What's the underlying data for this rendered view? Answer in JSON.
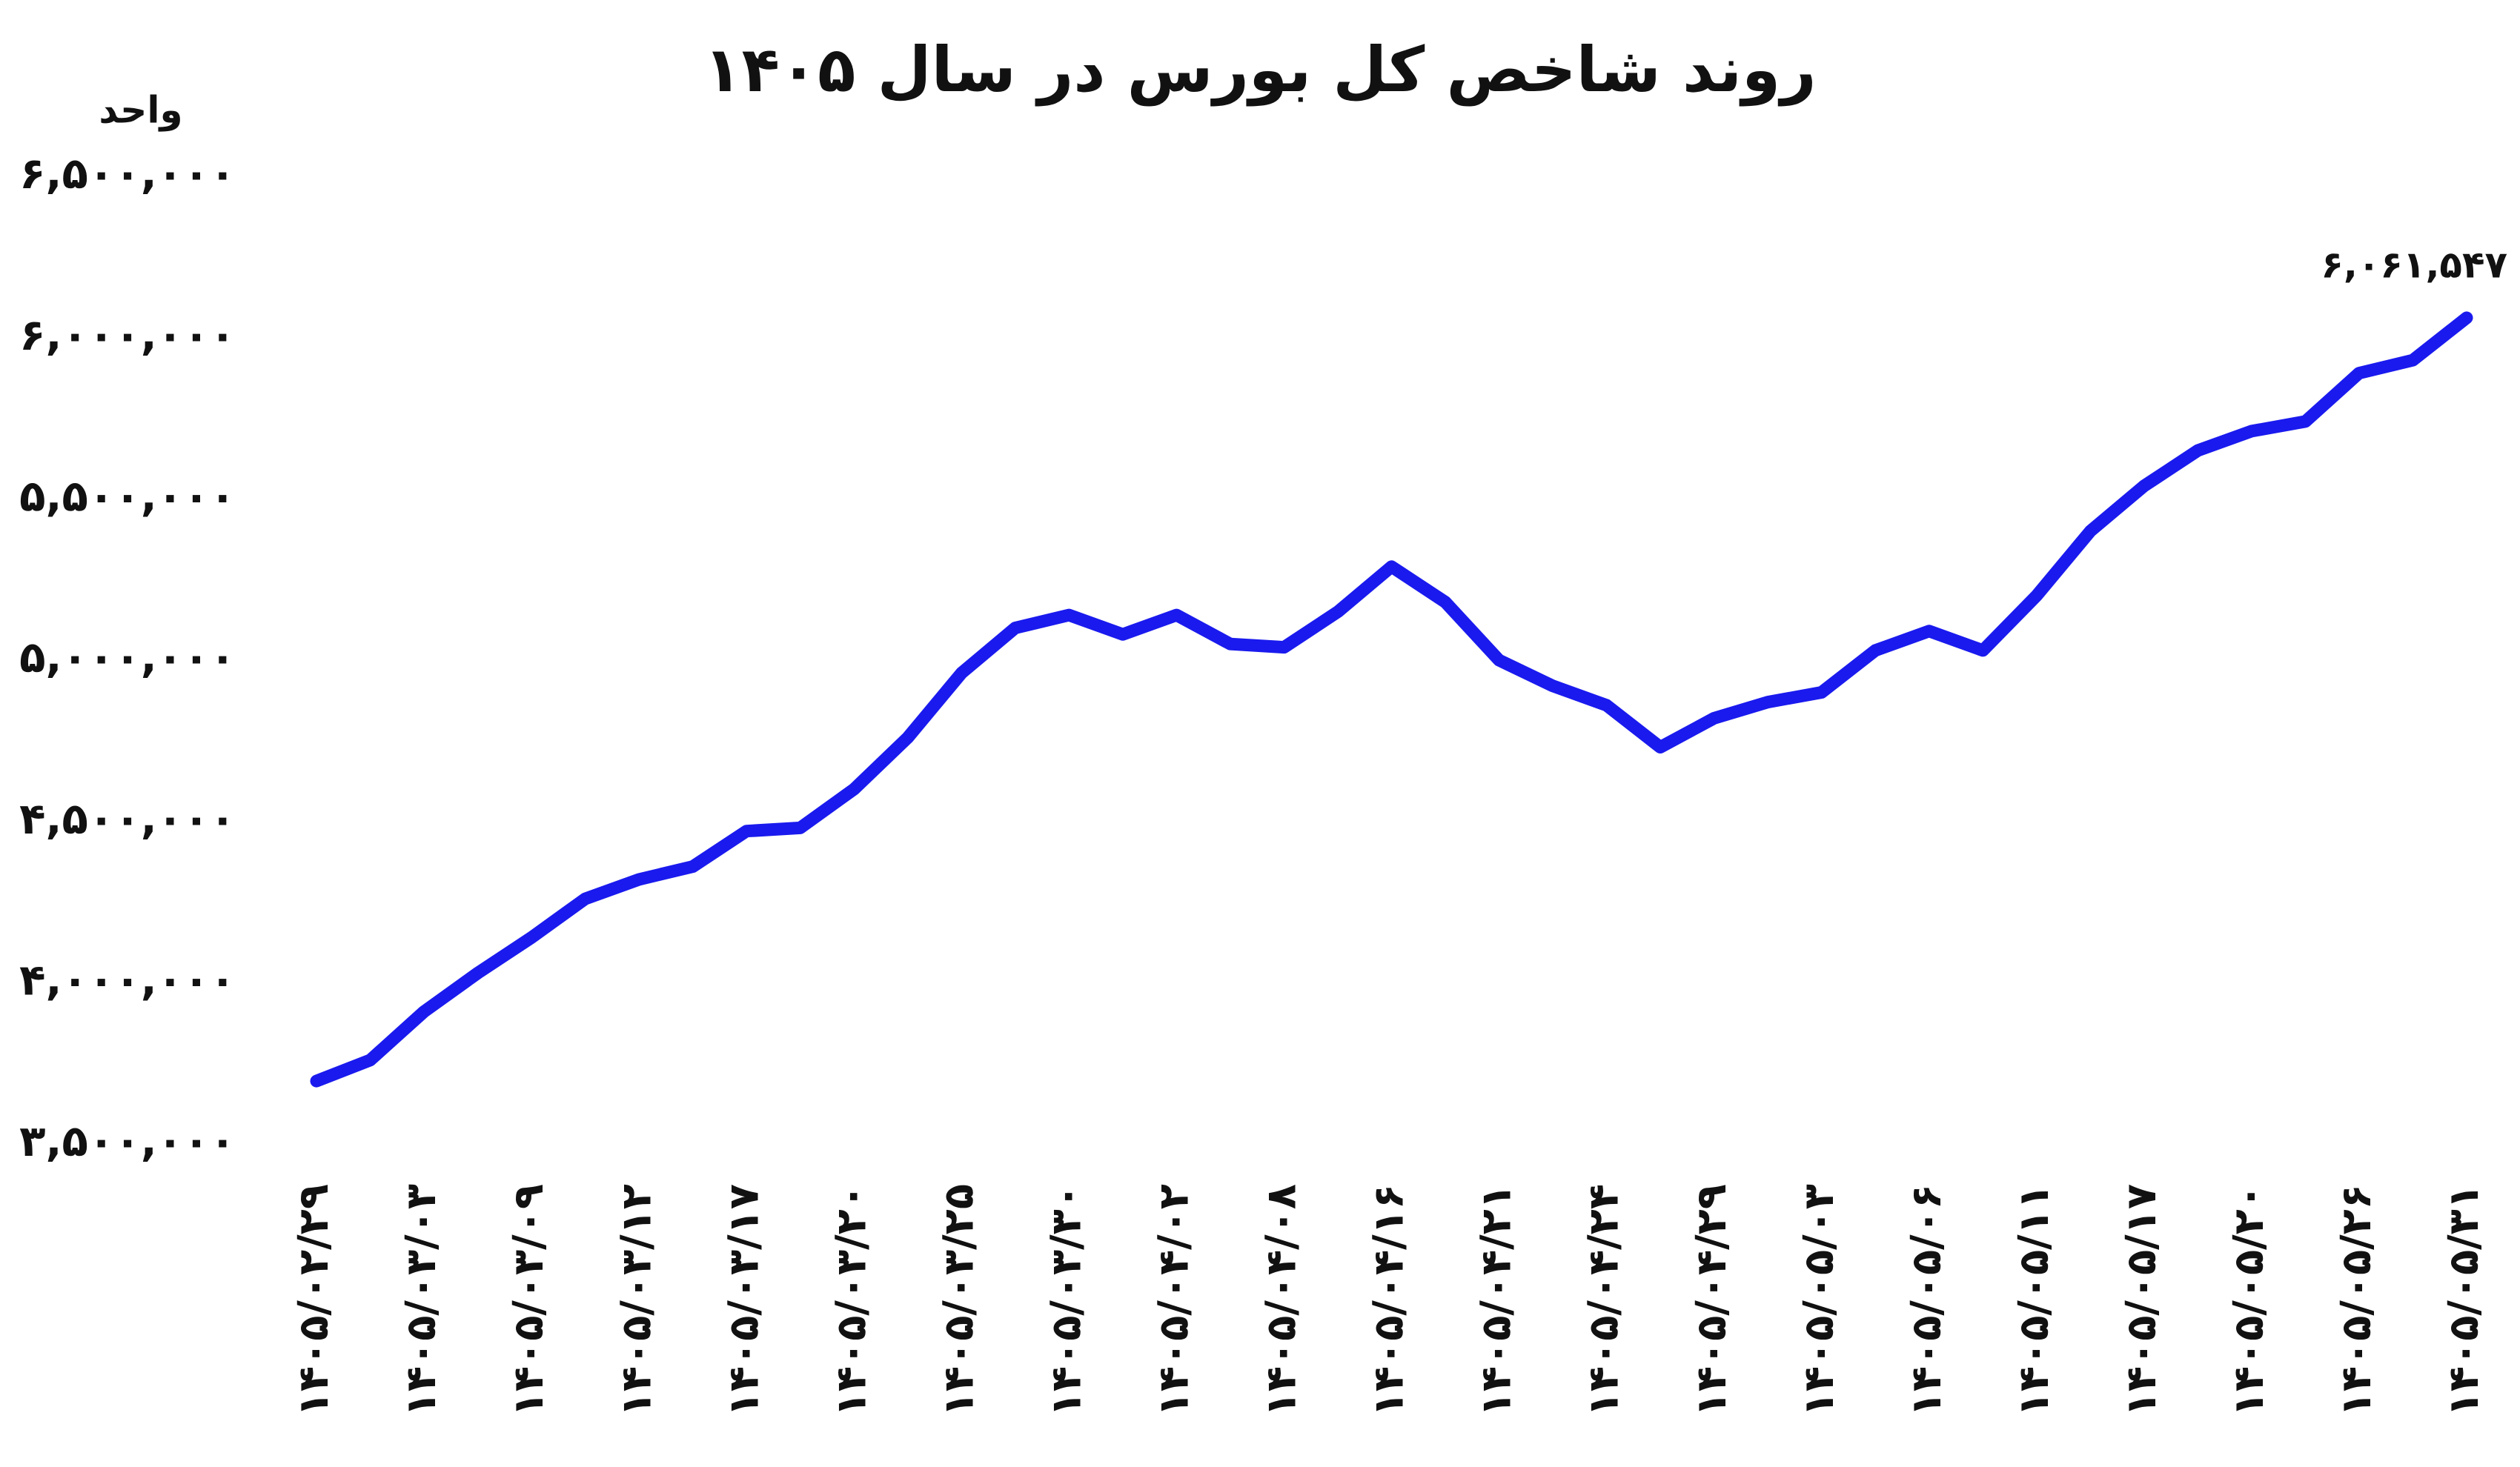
{
  "chart_data": {
    "type": "line",
    "title": "روند شاخص کل بورس در سال ۱۴۰۵",
    "y_label": "واحد",
    "categories": [
      "۱۴۰۵/۰۲/۲۹",
      null,
      "۱۴۰۵/۰۳/۰۳",
      null,
      "۱۴۰۵/۰۳/۰۹",
      null,
      "۱۴۰۵/۰۳/۱۲",
      null,
      "۱۴۰۵/۰۳/۱۷",
      null,
      "۱۴۰۵/۰۳/۲۰",
      null,
      "۱۴۰۵/۰۳/۲۵",
      null,
      "۱۴۰۵/۰۳/۳۰",
      null,
      "۱۴۰۵/۰۴/۰۲",
      null,
      "۱۴۰۵/۰۴/۰۸",
      null,
      "۱۴۰۵/۰۴/۱۶",
      null,
      "۱۴۰۵/۰۴/۲۱",
      null,
      "۱۴۰۵/۰۴/۲۴",
      null,
      "۱۴۰۵/۰۴/۲۹",
      null,
      "۱۴۰۵/۰۵/۰۳",
      null,
      "۱۴۰۵/۰۵/۰۶",
      null,
      "۱۴۰۵/۰۵/۱۱",
      null,
      "۱۴۰۵/۰۵/۱۷",
      null,
      "۱۴۰۵/۰۵/۲۰",
      null,
      "۱۴۰۵/۰۵/۲۶",
      null,
      "۱۴۰۵/۰۵/۳۱"
    ],
    "values": [
      3695000,
      3760000,
      3910000,
      4030000,
      4140000,
      4260000,
      4320000,
      4360000,
      4470000,
      4480000,
      4600000,
      4760000,
      4960000,
      5100000,
      5140000,
      5080000,
      5140000,
      5050000,
      5040000,
      5150000,
      5290000,
      5180000,
      5000000,
      4920000,
      4860000,
      4730000,
      4820000,
      4870000,
      4900000,
      5030000,
      5090000,
      5030000,
      5200000,
      5400000,
      5540000,
      5650000,
      5710000,
      5740000,
      5890000,
      5930000,
      6061547
    ],
    "value_labels": [
      null,
      null,
      null,
      null,
      null,
      null,
      null,
      null,
      null,
      null,
      null,
      null,
      null,
      null,
      null,
      null,
      null,
      null,
      null,
      null,
      null,
      null,
      null,
      null,
      null,
      null,
      null,
      null,
      null,
      null,
      null,
      null,
      null,
      null,
      null,
      null,
      null,
      null,
      null,
      null,
      "۶,۰۶۱,۵۴۷"
    ],
    "color": "#1a1aee",
    "ylim": [
      3500000,
      6500000
    ],
    "yticks": [
      {
        "value": 3500000,
        "label": "۳,۵۰۰,۰۰۰"
      },
      {
        "value": 4000000,
        "label": "۴,۰۰۰,۰۰۰"
      },
      {
        "value": 4500000,
        "label": "۴,۵۰۰,۰۰۰"
      },
      {
        "value": 5000000,
        "label": "۵,۰۰۰,۰۰۰"
      },
      {
        "value": 5500000,
        "label": "۵,۵۰۰,۰۰۰"
      },
      {
        "value": 6000000,
        "label": "۶,۰۰۰,۰۰۰"
      },
      {
        "value": 6500000,
        "label": "۶,۵۰۰,۰۰۰"
      }
    ],
    "grid": false
  }
}
